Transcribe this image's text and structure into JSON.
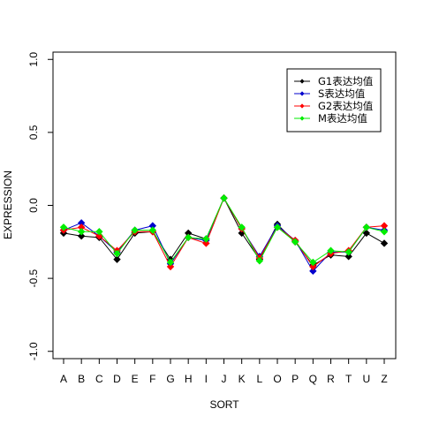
{
  "chart_data": {
    "type": "line",
    "title": "",
    "xlabel": "SORT",
    "ylabel": "EXPRESSION",
    "ylim": [
      -1.05,
      1.05
    ],
    "yticks": [
      -1.0,
      -0.5,
      0.0,
      0.5,
      1.0
    ],
    "ytick_labels": [
      "-1.0",
      "-0.5",
      "0.0",
      "0.5",
      "1.0"
    ],
    "categories": [
      "A",
      "B",
      "C",
      "D",
      "E",
      "F",
      "G",
      "H",
      "I",
      "J",
      "K",
      "L",
      "O",
      "P",
      "Q",
      "R",
      "T",
      "U",
      "Z"
    ],
    "legend_position": "top-right",
    "grid": false,
    "series": [
      {
        "name": "G1表达均值",
        "color": "#000000",
        "values": [
          -0.19,
          -0.21,
          -0.22,
          -0.37,
          -0.19,
          -0.18,
          -0.37,
          -0.19,
          -0.23,
          0.05,
          -0.19,
          -0.37,
          -0.13,
          -0.25,
          -0.41,
          -0.34,
          -0.35,
          -0.19,
          -0.26
        ]
      },
      {
        "name": "S表达均值",
        "color": "#0000cd",
        "values": [
          -0.17,
          -0.12,
          -0.21,
          -0.32,
          -0.17,
          -0.14,
          -0.4,
          -0.22,
          -0.24,
          0.05,
          -0.16,
          -0.35,
          -0.14,
          -0.24,
          -0.45,
          -0.32,
          -0.32,
          -0.15,
          -0.17
        ]
      },
      {
        "name": "G2表达均值",
        "color": "#ff0000",
        "values": [
          -0.17,
          -0.15,
          -0.21,
          -0.31,
          -0.18,
          -0.18,
          -0.42,
          -0.22,
          -0.26,
          0.05,
          -0.16,
          -0.36,
          -0.15,
          -0.24,
          -0.42,
          -0.33,
          -0.31,
          -0.15,
          -0.14
        ]
      },
      {
        "name": "M表达均值",
        "color": "#00ee00",
        "values": [
          -0.15,
          -0.18,
          -0.18,
          -0.33,
          -0.17,
          -0.17,
          -0.39,
          -0.22,
          -0.23,
          0.05,
          -0.15,
          -0.38,
          -0.15,
          -0.25,
          -0.39,
          -0.31,
          -0.32,
          -0.15,
          -0.18
        ]
      }
    ]
  }
}
